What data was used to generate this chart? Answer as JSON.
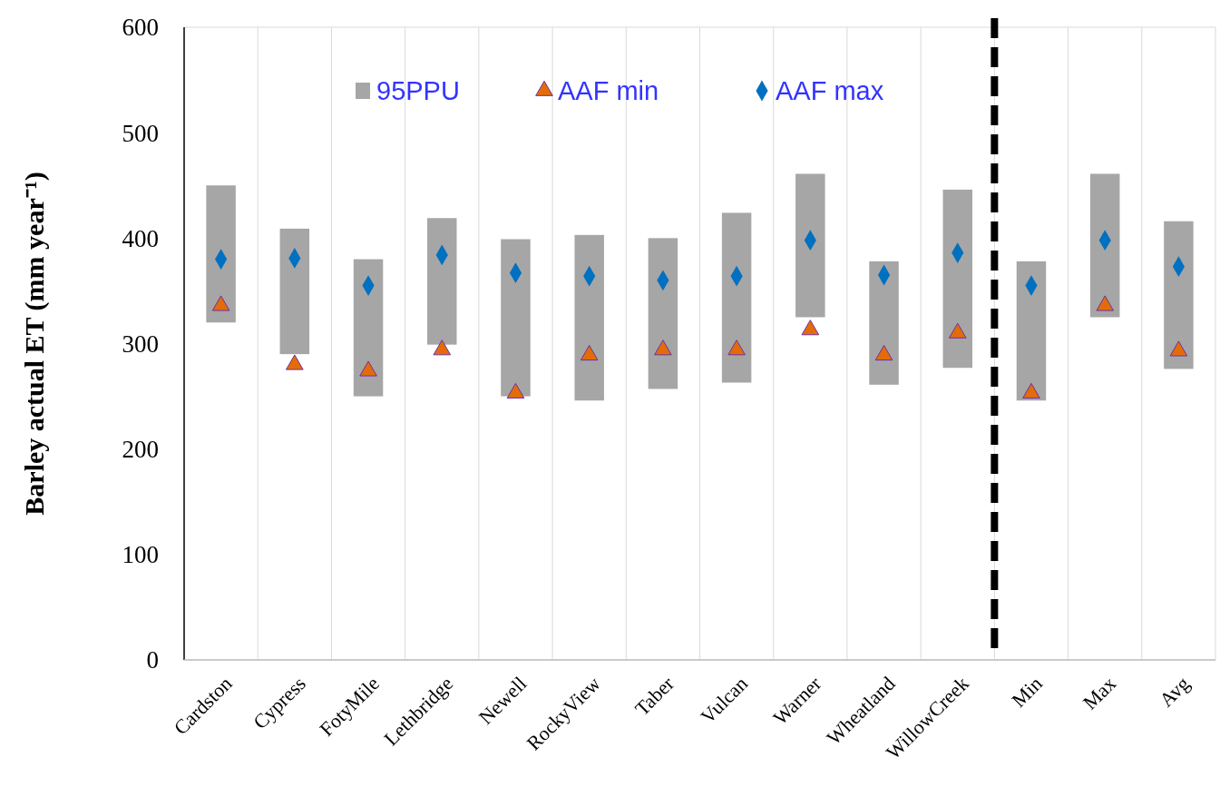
{
  "chart_data": {
    "type": "bar",
    "ylabel": "Barley actual ET (mm year⁻¹)",
    "categories": [
      "Cardston",
      "Cypress",
      "FotyMile",
      "Lethbridge",
      "Newell",
      "RockyView",
      "Taber",
      "Vulcan",
      "Warner",
      "Wheatland",
      "WillowCreek",
      "Min",
      "Max",
      "Avg"
    ],
    "series": [
      {
        "name": "95PPU",
        "color": "#a6a6a6",
        "base": [
          320,
          290,
          250,
          299,
          250,
          246,
          257,
          263,
          325,
          261,
          277,
          246,
          325,
          276
        ],
        "values": [
          130,
          119,
          130,
          120,
          149,
          157,
          143,
          161,
          136,
          117,
          169,
          132,
          136,
          140
        ]
      },
      {
        "name": "AAF min",
        "type": "scatter",
        "marker": "triangle",
        "color": "#e36c09",
        "values": [
          336,
          280,
          274,
          294,
          253,
          289,
          294,
          294,
          313,
          289,
          310,
          253,
          336,
          293
        ]
      },
      {
        "name": "AAF max",
        "type": "scatter",
        "marker": "diamond",
        "color": "#0070c0",
        "values": [
          380,
          381,
          355,
          384,
          367,
          364,
          360,
          364,
          398,
          365,
          386,
          355,
          398,
          373
        ]
      }
    ],
    "ylim": [
      0,
      600
    ],
    "yticks": [
      0,
      100,
      200,
      300,
      400,
      500,
      600
    ],
    "grid": "x",
    "legend": "top"
  }
}
